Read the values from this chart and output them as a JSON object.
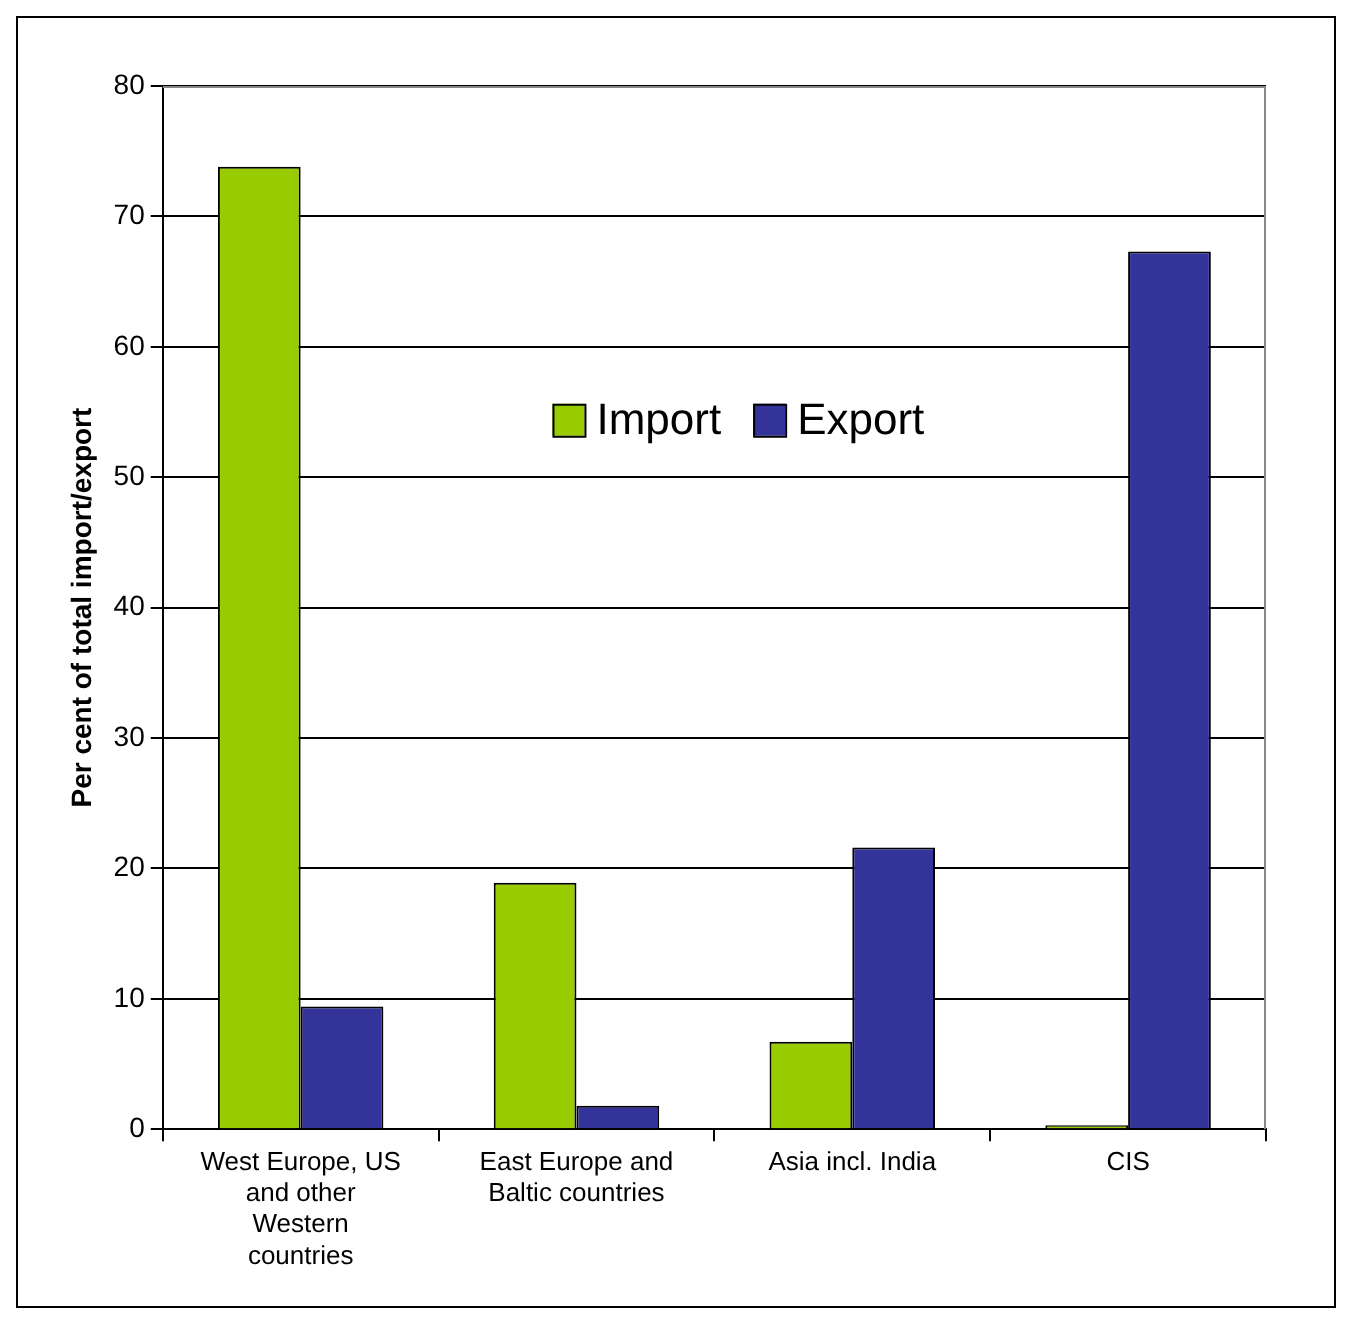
{
  "chart_data": {
    "type": "bar",
    "ylabel": "Per cent of total import/export",
    "categories": [
      "West Europe, US and other Western countries",
      "East Europe and Baltic countries",
      "Asia incl. India",
      "CIS"
    ],
    "series": [
      {
        "name": "Import",
        "color": "#99cc00",
        "values": [
          73.8,
          18.9,
          6.7,
          0.3
        ]
      },
      {
        "name": "Export",
        "color": "#333399",
        "values": [
          9.4,
          1.8,
          21.6,
          67.3
        ]
      }
    ],
    "ylim": [
      0,
      80
    ],
    "yticks": [
      0,
      10,
      20,
      30,
      40,
      50,
      60,
      70,
      80
    ],
    "grid": "y",
    "legend": "top"
  }
}
